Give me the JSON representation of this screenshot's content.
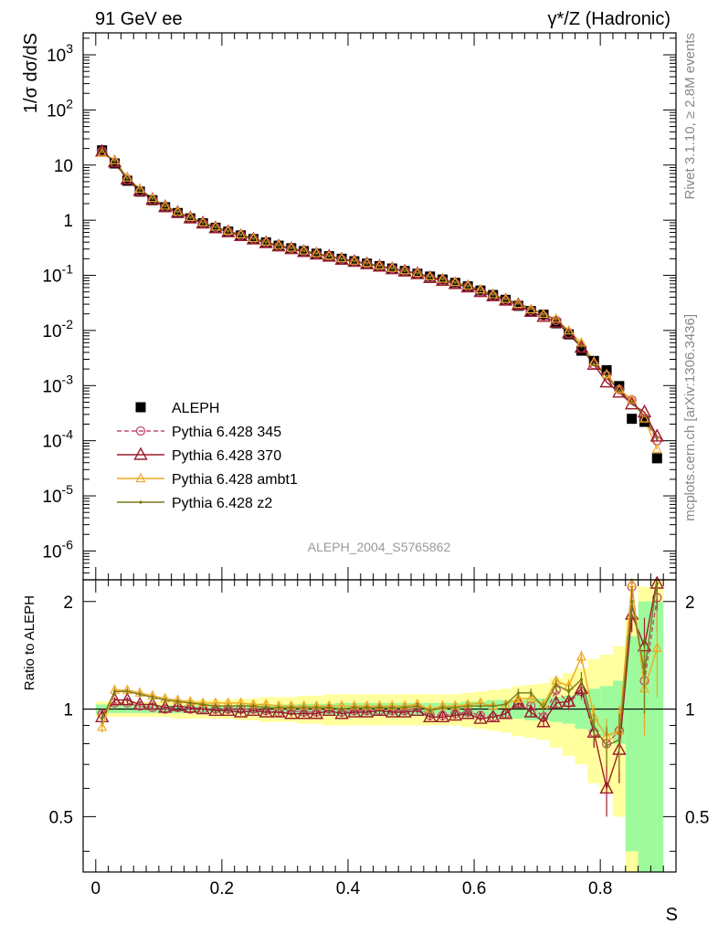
{
  "header": {
    "left": "91 GeV ee",
    "right": "γ*/Z (Hadronic)"
  },
  "side": {
    "rivet": "Rivet 3.1.10, ≥ 2.8M events",
    "mcplots": "mcplots.cern.ch [arXiv:1306.3436]"
  },
  "watermark": "ALEPH_2004_S5765862",
  "colors": {
    "data": "#000000",
    "p345": "#c24a6a",
    "p370": "#9c1c2c",
    "ambt1": "#f0a820",
    "z2": "#7a7a18",
    "band_inner": "#9dfb9d",
    "band_outer": "#ffff9d"
  },
  "chart_data": [
    {
      "type": "scatter",
      "title": "",
      "ylabel": "1/σ dσ/dS",
      "xlabel": "",
      "yscale": "log",
      "xlim": [
        -0.02,
        0.92
      ],
      "ylim": [
        3e-07,
        2500
      ],
      "y_ticks": [
        "10^3",
        "10^2",
        "10",
        "1",
        "10^-1",
        "10^-2",
        "10^-3",
        "10^-4",
        "10^-5",
        "10^-6"
      ],
      "legend_position": "lower-left",
      "x": [
        0.01,
        0.03,
        0.05,
        0.07,
        0.09,
        0.11,
        0.13,
        0.15,
        0.17,
        0.19,
        0.21,
        0.23,
        0.25,
        0.27,
        0.29,
        0.31,
        0.33,
        0.35,
        0.37,
        0.39,
        0.41,
        0.43,
        0.45,
        0.47,
        0.49,
        0.51,
        0.53,
        0.55,
        0.57,
        0.59,
        0.61,
        0.63,
        0.65,
        0.67,
        0.69,
        0.71,
        0.73,
        0.75,
        0.77,
        0.79,
        0.81,
        0.83,
        0.85,
        0.87,
        0.89
      ],
      "series": [
        {
          "name": "ALEPH",
          "marker": "square",
          "values": [
            18.5,
            10.7,
            5.2,
            3.3,
            2.3,
            1.72,
            1.35,
            1.08,
            0.88,
            0.73,
            0.62,
            0.53,
            0.455,
            0.395,
            0.345,
            0.31,
            0.275,
            0.247,
            0.222,
            0.2,
            0.18,
            0.163,
            0.147,
            0.133,
            0.12,
            0.107,
            0.095,
            0.084,
            0.073,
            0.063,
            0.053,
            0.044,
            0.036,
            0.028,
            0.0225,
            0.0193,
            0.0135,
            0.0085,
            0.0043,
            0.0028,
            0.0019,
            0.00098,
            0.00025,
            0.00022,
            4.8e-05
          ]
        },
        {
          "name": "Pythia 6.428 345",
          "marker": "circle",
          "values": [
            17.9,
            11.1,
            5.4,
            3.35,
            2.33,
            1.72,
            1.36,
            1.09,
            0.88,
            0.73,
            0.62,
            0.53,
            0.455,
            0.392,
            0.338,
            0.307,
            0.27,
            0.243,
            0.221,
            0.196,
            0.178,
            0.162,
            0.145,
            0.132,
            0.119,
            0.108,
            0.091,
            0.081,
            0.071,
            0.062,
            0.051,
            0.042,
            0.035,
            0.029,
            0.023,
            0.0182,
            0.0152,
            0.0088,
            0.0048,
            0.0024,
            0.00152,
            0.00085,
            0.00055,
            0.00026,
            0.0001
          ]
        },
        {
          "name": "Pythia 6.428 370",
          "marker": "triangle",
          "values": [
            17.6,
            11.3,
            5.5,
            3.4,
            2.36,
            1.74,
            1.37,
            1.09,
            0.88,
            0.72,
            0.61,
            0.52,
            0.45,
            0.387,
            0.337,
            0.3,
            0.267,
            0.24,
            0.22,
            0.193,
            0.177,
            0.16,
            0.145,
            0.13,
            0.118,
            0.106,
            0.09,
            0.08,
            0.07,
            0.061,
            0.05,
            0.042,
            0.035,
            0.029,
            0.022,
            0.0178,
            0.014,
            0.0089,
            0.0049,
            0.0024,
            0.00115,
            0.00075,
            0.00046,
            0.00033,
            0.00012
          ]
        },
        {
          "name": "Pythia 6.428 ambt1",
          "marker": "triangle",
          "values": [
            16.5,
            12.1,
            5.9,
            3.7,
            2.5,
            1.82,
            1.42,
            1.13,
            0.91,
            0.76,
            0.64,
            0.55,
            0.47,
            0.405,
            0.352,
            0.315,
            0.28,
            0.252,
            0.226,
            0.203,
            0.183,
            0.166,
            0.15,
            0.135,
            0.122,
            0.11,
            0.095,
            0.086,
            0.075,
            0.065,
            0.055,
            0.045,
            0.037,
            0.03,
            0.024,
            0.0198,
            0.0162,
            0.0099,
            0.006,
            0.0027,
            0.0016,
            0.00085,
            0.00056,
            0.00025,
            7e-05
          ]
        },
        {
          "name": "Pythia 6.428 z2",
          "marker": "dot",
          "values": [
            17.4,
            12.0,
            5.8,
            3.65,
            2.48,
            1.8,
            1.41,
            1.12,
            0.9,
            0.75,
            0.63,
            0.545,
            0.465,
            0.4,
            0.35,
            0.312,
            0.278,
            0.25,
            0.224,
            0.2,
            0.182,
            0.165,
            0.149,
            0.134,
            0.121,
            0.109,
            0.094,
            0.085,
            0.074,
            0.064,
            0.054,
            0.045,
            0.037,
            0.031,
            0.025,
            0.0195,
            0.0158,
            0.0095,
            0.0052,
            0.0025,
            0.0015,
            0.0008,
            0.0005,
            0.00028,
            0.00011
          ]
        }
      ]
    },
    {
      "type": "line",
      "title": "",
      "ylabel": "Ratio to ALEPH",
      "xlabel": "S",
      "xlim": [
        -0.02,
        0.92
      ],
      "ylim": [
        0.35,
        2.3
      ],
      "y_ticks": [
        0.5,
        1,
        2
      ],
      "x_ticks": [
        0,
        0.2,
        0.4,
        0.6,
        0.8
      ],
      "x": [
        0.01,
        0.03,
        0.05,
        0.07,
        0.09,
        0.11,
        0.13,
        0.15,
        0.17,
        0.19,
        0.21,
        0.23,
        0.25,
        0.27,
        0.29,
        0.31,
        0.33,
        0.35,
        0.37,
        0.39,
        0.41,
        0.43,
        0.45,
        0.47,
        0.49,
        0.51,
        0.53,
        0.55,
        0.57,
        0.59,
        0.61,
        0.63,
        0.65,
        0.67,
        0.69,
        0.71,
        0.73,
        0.75,
        0.77,
        0.79,
        0.81,
        0.83,
        0.85,
        0.87,
        0.89
      ],
      "band_inner": [
        0.03,
        0.025,
        0.025,
        0.025,
        0.025,
        0.025,
        0.025,
        0.025,
        0.025,
        0.025,
        0.025,
        0.03,
        0.03,
        0.03,
        0.03,
        0.03,
        0.035,
        0.035,
        0.035,
        0.04,
        0.04,
        0.04,
        0.04,
        0.04,
        0.04,
        0.04,
        0.04,
        0.04,
        0.04,
        0.05,
        0.05,
        0.06,
        0.06,
        0.06,
        0.07,
        0.07,
        0.08,
        0.09,
        0.12,
        0.14,
        0.16,
        0.2,
        0.6,
        1.0,
        1.0
      ],
      "band_outer": [
        0.05,
        0.05,
        0.05,
        0.05,
        0.05,
        0.05,
        0.06,
        0.06,
        0.06,
        0.06,
        0.06,
        0.07,
        0.07,
        0.08,
        0.08,
        0.08,
        0.09,
        0.09,
        0.1,
        0.1,
        0.1,
        0.1,
        0.1,
        0.1,
        0.1,
        0.1,
        0.1,
        0.1,
        0.1,
        0.11,
        0.12,
        0.13,
        0.14,
        0.16,
        0.17,
        0.18,
        0.22,
        0.26,
        0.3,
        0.38,
        0.42,
        0.5,
        0.8,
        1.2,
        1.4
      ],
      "series": [
        {
          "name": "Pythia 6.428 345",
          "values": [
            0.97,
            1.04,
            1.04,
            1.02,
            1.01,
            1.0,
            1.01,
            1.0,
            1.0,
            1.0,
            1.0,
            1.0,
            1.0,
            0.99,
            0.98,
            0.99,
            0.98,
            0.98,
            1.0,
            0.98,
            0.99,
            0.99,
            0.99,
            0.99,
            0.99,
            1.01,
            0.96,
            0.96,
            0.97,
            0.98,
            0.96,
            0.95,
            0.97,
            1.04,
            1.02,
            0.95,
            1.13,
            1.04,
            1.12,
            0.86,
            0.8,
            0.87,
            2.2,
            1.2,
            2.05
          ],
          "err": [
            0.03,
            0.02,
            0.02,
            0.02,
            0.02,
            0.02,
            0.02,
            0.02,
            0.02,
            0.02,
            0.02,
            0.02,
            0.02,
            0.02,
            0.02,
            0.02,
            0.02,
            0.02,
            0.02,
            0.02,
            0.02,
            0.02,
            0.02,
            0.02,
            0.02,
            0.02,
            0.02,
            0.02,
            0.02,
            0.02,
            0.02,
            0.02,
            0.02,
            0.03,
            0.03,
            0.03,
            0.04,
            0.05,
            0.06,
            0.08,
            0.1,
            0.15,
            0.2,
            0.3,
            0.4
          ]
        },
        {
          "name": "Pythia 6.428 370",
          "values": [
            0.95,
            1.06,
            1.06,
            1.03,
            1.03,
            1.01,
            1.02,
            1.01,
            1.0,
            0.99,
            0.99,
            0.98,
            0.99,
            0.98,
            0.98,
            0.97,
            0.97,
            0.97,
            0.99,
            0.97,
            0.98,
            0.98,
            0.99,
            0.98,
            0.98,
            0.99,
            0.95,
            0.95,
            0.96,
            0.97,
            0.94,
            0.95,
            0.97,
            1.04,
            0.98,
            0.92,
            1.04,
            1.05,
            1.14,
            0.86,
            0.6,
            0.77,
            1.84,
            1.5,
            2.3
          ],
          "err": [
            0.03,
            0.02,
            0.02,
            0.02,
            0.02,
            0.02,
            0.02,
            0.02,
            0.02,
            0.02,
            0.02,
            0.02,
            0.02,
            0.02,
            0.02,
            0.02,
            0.02,
            0.02,
            0.02,
            0.02,
            0.02,
            0.02,
            0.02,
            0.02,
            0.02,
            0.02,
            0.02,
            0.02,
            0.02,
            0.02,
            0.02,
            0.02,
            0.02,
            0.03,
            0.03,
            0.03,
            0.04,
            0.05,
            0.06,
            0.08,
            0.1,
            0.15,
            0.2,
            0.3,
            0.4
          ]
        },
        {
          "name": "Pythia 6.428 ambt1",
          "values": [
            0.89,
            1.13,
            1.13,
            1.11,
            1.09,
            1.07,
            1.06,
            1.05,
            1.04,
            1.04,
            1.04,
            1.04,
            1.03,
            1.03,
            1.02,
            1.02,
            1.02,
            1.02,
            1.02,
            1.02,
            1.02,
            1.02,
            1.02,
            1.02,
            1.02,
            1.03,
            1.0,
            1.02,
            1.02,
            1.03,
            1.04,
            1.02,
            1.03,
            1.07,
            1.07,
            1.03,
            1.2,
            1.16,
            1.4,
            0.95,
            0.84,
            0.87,
            2.25,
            1.14,
            1.48
          ],
          "err": [
            0.03,
            0.02,
            0.02,
            0.02,
            0.02,
            0.02,
            0.02,
            0.02,
            0.02,
            0.02,
            0.02,
            0.02,
            0.02,
            0.02,
            0.02,
            0.02,
            0.02,
            0.02,
            0.02,
            0.02,
            0.02,
            0.02,
            0.02,
            0.02,
            0.02,
            0.02,
            0.02,
            0.02,
            0.02,
            0.02,
            0.02,
            0.02,
            0.02,
            0.03,
            0.03,
            0.03,
            0.04,
            0.05,
            0.06,
            0.08,
            0.1,
            0.15,
            0.2,
            0.3,
            0.4
          ]
        },
        {
          "name": "Pythia 6.428 z2",
          "values": [
            0.94,
            1.12,
            1.12,
            1.1,
            1.08,
            1.06,
            1.05,
            1.04,
            1.03,
            1.02,
            1.02,
            1.02,
            1.02,
            1.01,
            1.01,
            1.01,
            1.01,
            1.01,
            1.01,
            1.0,
            1.01,
            1.01,
            1.01,
            1.01,
            1.01,
            1.02,
            0.99,
            1.01,
            1.01,
            1.02,
            1.02,
            1.02,
            1.03,
            1.11,
            1.11,
            1.01,
            1.17,
            1.12,
            1.21,
            0.89,
            0.79,
            0.82,
            2.0,
            1.27,
            2.29
          ],
          "err": [
            0.03,
            0.02,
            0.02,
            0.02,
            0.02,
            0.02,
            0.02,
            0.02,
            0.02,
            0.02,
            0.02,
            0.02,
            0.02,
            0.02,
            0.02,
            0.02,
            0.02,
            0.02,
            0.02,
            0.02,
            0.02,
            0.02,
            0.02,
            0.02,
            0.02,
            0.02,
            0.02,
            0.02,
            0.02,
            0.02,
            0.02,
            0.02,
            0.02,
            0.03,
            0.03,
            0.03,
            0.04,
            0.05,
            0.06,
            0.08,
            0.1,
            0.15,
            0.2,
            0.3,
            0.4
          ]
        }
      ]
    }
  ]
}
